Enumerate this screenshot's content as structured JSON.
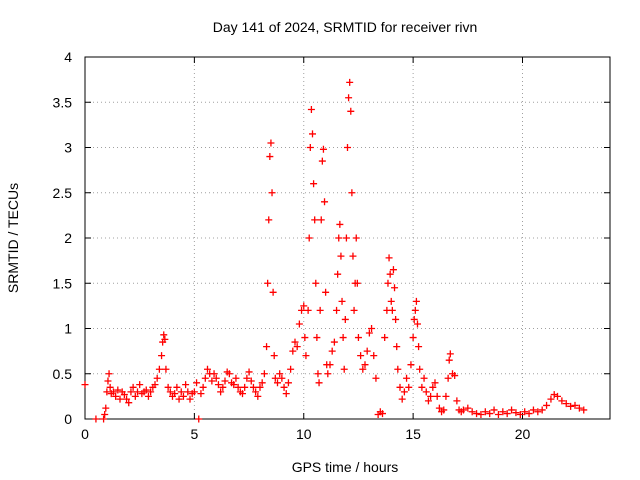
{
  "chart_data": {
    "type": "scatter",
    "title": "Day 141 of 2024, SRMTID for receiver rivn",
    "xlabel": "GPS time / hours",
    "ylabel": "SRMTID / TECUs",
    "xlim": [
      0,
      24
    ],
    "ylim": [
      0,
      4
    ],
    "xticks": [
      0,
      5,
      10,
      15,
      20
    ],
    "xtick_labels": [
      "0",
      "5",
      "10",
      "15",
      "20"
    ],
    "yticks": [
      0,
      0.5,
      1,
      1.5,
      2,
      2.5,
      3,
      3.5,
      4
    ],
    "ytick_labels": [
      "0",
      "0.5",
      "1",
      "1.5",
      "2",
      "2.5",
      "3",
      "3.5",
      "4"
    ],
    "grid": true,
    "marker": "+",
    "series": [
      {
        "name": "rivn",
        "color": "#ff0000",
        "points": [
          [
            0.0,
            0.38
          ],
          [
            0.5,
            0.0
          ],
          [
            0.85,
            0.0
          ],
          [
            0.9,
            0.05
          ],
          [
            0.95,
            0.12
          ],
          [
            1.0,
            0.3
          ],
          [
            1.05,
            0.42
          ],
          [
            1.1,
            0.5
          ],
          [
            1.15,
            0.35
          ],
          [
            1.2,
            0.28
          ],
          [
            1.3,
            0.3
          ],
          [
            1.4,
            0.25
          ],
          [
            1.5,
            0.32
          ],
          [
            1.6,
            0.22
          ],
          [
            1.7,
            0.3
          ],
          [
            1.8,
            0.27
          ],
          [
            1.9,
            0.22
          ],
          [
            2.0,
            0.18
          ],
          [
            2.1,
            0.3
          ],
          [
            2.2,
            0.35
          ],
          [
            2.3,
            0.25
          ],
          [
            2.4,
            0.3
          ],
          [
            2.5,
            0.38
          ],
          [
            2.6,
            0.28
          ],
          [
            2.7,
            0.3
          ],
          [
            2.8,
            0.32
          ],
          [
            2.9,
            0.25
          ],
          [
            3.0,
            0.3
          ],
          [
            3.1,
            0.35
          ],
          [
            3.2,
            0.38
          ],
          [
            3.3,
            0.45
          ],
          [
            3.4,
            0.55
          ],
          [
            3.5,
            0.7
          ],
          [
            3.55,
            0.85
          ],
          [
            3.6,
            0.93
          ],
          [
            3.65,
            0.88
          ],
          [
            3.7,
            0.55
          ],
          [
            3.8,
            0.35
          ],
          [
            3.9,
            0.3
          ],
          [
            4.0,
            0.25
          ],
          [
            4.1,
            0.28
          ],
          [
            4.2,
            0.35
          ],
          [
            4.3,
            0.22
          ],
          [
            4.4,
            0.3
          ],
          [
            4.5,
            0.25
          ],
          [
            4.6,
            0.38
          ],
          [
            4.7,
            0.3
          ],
          [
            4.8,
            0.22
          ],
          [
            4.9,
            0.28
          ],
          [
            5.0,
            0.3
          ],
          [
            5.1,
            0.4
          ],
          [
            5.2,
            0.0
          ],
          [
            5.3,
            0.28
          ],
          [
            5.4,
            0.35
          ],
          [
            5.5,
            0.45
          ],
          [
            5.6,
            0.55
          ],
          [
            5.7,
            0.5
          ],
          [
            5.8,
            0.42
          ],
          [
            5.9,
            0.5
          ],
          [
            6.0,
            0.45
          ],
          [
            6.1,
            0.38
          ],
          [
            6.2,
            0.3
          ],
          [
            6.3,
            0.35
          ],
          [
            6.4,
            0.42
          ],
          [
            6.5,
            0.52
          ],
          [
            6.6,
            0.5
          ],
          [
            6.7,
            0.4
          ],
          [
            6.8,
            0.38
          ],
          [
            6.9,
            0.45
          ],
          [
            7.0,
            0.35
          ],
          [
            7.1,
            0.3
          ],
          [
            7.2,
            0.28
          ],
          [
            7.3,
            0.35
          ],
          [
            7.4,
            0.45
          ],
          [
            7.5,
            0.52
          ],
          [
            7.6,
            0.42
          ],
          [
            7.7,
            0.35
          ],
          [
            7.8,
            0.3
          ],
          [
            7.9,
            0.25
          ],
          [
            8.0,
            0.35
          ],
          [
            8.1,
            0.4
          ],
          [
            8.2,
            0.5
          ],
          [
            8.3,
            0.8
          ],
          [
            8.35,
            1.5
          ],
          [
            8.4,
            2.2
          ],
          [
            8.45,
            2.9
          ],
          [
            8.5,
            3.05
          ],
          [
            8.55,
            2.5
          ],
          [
            8.6,
            1.4
          ],
          [
            8.65,
            0.7
          ],
          [
            8.7,
            0.45
          ],
          [
            8.8,
            0.4
          ],
          [
            8.9,
            0.5
          ],
          [
            9.0,
            0.45
          ],
          [
            9.1,
            0.35
          ],
          [
            9.2,
            0.28
          ],
          [
            9.3,
            0.4
          ],
          [
            9.4,
            0.55
          ],
          [
            9.5,
            0.75
          ],
          [
            9.6,
            0.85
          ],
          [
            9.7,
            0.8
          ],
          [
            9.8,
            1.05
          ],
          [
            9.9,
            1.2
          ],
          [
            10.0,
            1.25
          ],
          [
            10.05,
            0.9
          ],
          [
            10.1,
            0.7
          ],
          [
            10.2,
            1.2
          ],
          [
            10.25,
            2.0
          ],
          [
            10.3,
            3.0
          ],
          [
            10.35,
            3.42
          ],
          [
            10.4,
            3.15
          ],
          [
            10.45,
            2.6
          ],
          [
            10.5,
            2.2
          ],
          [
            10.55,
            1.5
          ],
          [
            10.6,
            0.9
          ],
          [
            10.65,
            0.5
          ],
          [
            10.7,
            0.4
          ],
          [
            10.75,
            1.2
          ],
          [
            10.8,
            2.2
          ],
          [
            10.85,
            2.85
          ],
          [
            10.9,
            2.98
          ],
          [
            10.95,
            2.4
          ],
          [
            11.0,
            1.4
          ],
          [
            11.05,
            0.6
          ],
          [
            11.1,
            0.5
          ],
          [
            11.2,
            0.6
          ],
          [
            11.3,
            0.75
          ],
          [
            11.4,
            0.85
          ],
          [
            11.5,
            1.2
          ],
          [
            11.55,
            1.6
          ],
          [
            11.6,
            2.0
          ],
          [
            11.65,
            2.15
          ],
          [
            11.7,
            1.8
          ],
          [
            11.75,
            1.3
          ],
          [
            11.8,
            0.9
          ],
          [
            11.85,
            0.55
          ],
          [
            11.9,
            1.1
          ],
          [
            11.95,
            2.0
          ],
          [
            12.0,
            3.0
          ],
          [
            12.05,
            3.55
          ],
          [
            12.1,
            3.72
          ],
          [
            12.15,
            3.4
          ],
          [
            12.2,
            2.5
          ],
          [
            12.25,
            1.8
          ],
          [
            12.3,
            1.2
          ],
          [
            12.35,
            1.5
          ],
          [
            12.4,
            2.0
          ],
          [
            12.45,
            1.5
          ],
          [
            12.5,
            0.9
          ],
          [
            12.6,
            0.7
          ],
          [
            12.7,
            0.55
          ],
          [
            12.8,
            0.6
          ],
          [
            12.9,
            0.75
          ],
          [
            13.0,
            0.95
          ],
          [
            13.1,
            1.0
          ],
          [
            13.2,
            0.7
          ],
          [
            13.3,
            0.45
          ],
          [
            13.4,
            0.05
          ],
          [
            13.5,
            0.08
          ],
          [
            13.6,
            0.06
          ],
          [
            13.7,
            0.9
          ],
          [
            13.8,
            1.2
          ],
          [
            13.85,
            1.5
          ],
          [
            13.9,
            1.78
          ],
          [
            13.95,
            1.6
          ],
          [
            14.0,
            1.3
          ],
          [
            14.05,
            1.2
          ],
          [
            14.1,
            1.65
          ],
          [
            14.15,
            1.45
          ],
          [
            14.2,
            1.1
          ],
          [
            14.25,
            0.8
          ],
          [
            14.3,
            0.55
          ],
          [
            14.4,
            0.35
          ],
          [
            14.5,
            0.22
          ],
          [
            14.6,
            0.3
          ],
          [
            14.7,
            0.45
          ],
          [
            14.8,
            0.35
          ],
          [
            14.9,
            0.6
          ],
          [
            15.0,
            0.9
          ],
          [
            15.05,
            1.1
          ],
          [
            15.1,
            1.2
          ],
          [
            15.15,
            1.3
          ],
          [
            15.2,
            1.05
          ],
          [
            15.25,
            0.8
          ],
          [
            15.3,
            0.55
          ],
          [
            15.4,
            0.35
          ],
          [
            15.5,
            0.45
          ],
          [
            15.6,
            0.3
          ],
          [
            15.7,
            0.2
          ],
          [
            15.8,
            0.25
          ],
          [
            15.9,
            0.35
          ],
          [
            16.0,
            0.4
          ],
          [
            16.1,
            0.25
          ],
          [
            16.2,
            0.12
          ],
          [
            16.3,
            0.08
          ],
          [
            16.4,
            0.1
          ],
          [
            16.5,
            0.25
          ],
          [
            16.6,
            0.45
          ],
          [
            16.65,
            0.65
          ],
          [
            16.7,
            0.72
          ],
          [
            16.8,
            0.5
          ],
          [
            16.9,
            0.48
          ],
          [
            17.0,
            0.2
          ],
          [
            17.1,
            0.1
          ],
          [
            17.2,
            0.08
          ],
          [
            17.3,
            0.1
          ],
          [
            17.5,
            0.12
          ],
          [
            17.7,
            0.08
          ],
          [
            17.9,
            0.06
          ],
          [
            18.1,
            0.05
          ],
          [
            18.3,
            0.08
          ],
          [
            18.5,
            0.06
          ],
          [
            18.7,
            0.1
          ],
          [
            18.9,
            0.05
          ],
          [
            19.1,
            0.08
          ],
          [
            19.3,
            0.06
          ],
          [
            19.5,
            0.1
          ],
          [
            19.7,
            0.07
          ],
          [
            19.9,
            0.05
          ],
          [
            20.1,
            0.08
          ],
          [
            20.3,
            0.06
          ],
          [
            20.5,
            0.1
          ],
          [
            20.7,
            0.08
          ],
          [
            20.9,
            0.1
          ],
          [
            21.1,
            0.15
          ],
          [
            21.3,
            0.22
          ],
          [
            21.45,
            0.27
          ],
          [
            21.6,
            0.25
          ],
          [
            21.8,
            0.2
          ],
          [
            22.0,
            0.17
          ],
          [
            22.2,
            0.14
          ],
          [
            22.4,
            0.15
          ],
          [
            22.6,
            0.12
          ],
          [
            22.8,
            0.1
          ]
        ]
      }
    ]
  }
}
